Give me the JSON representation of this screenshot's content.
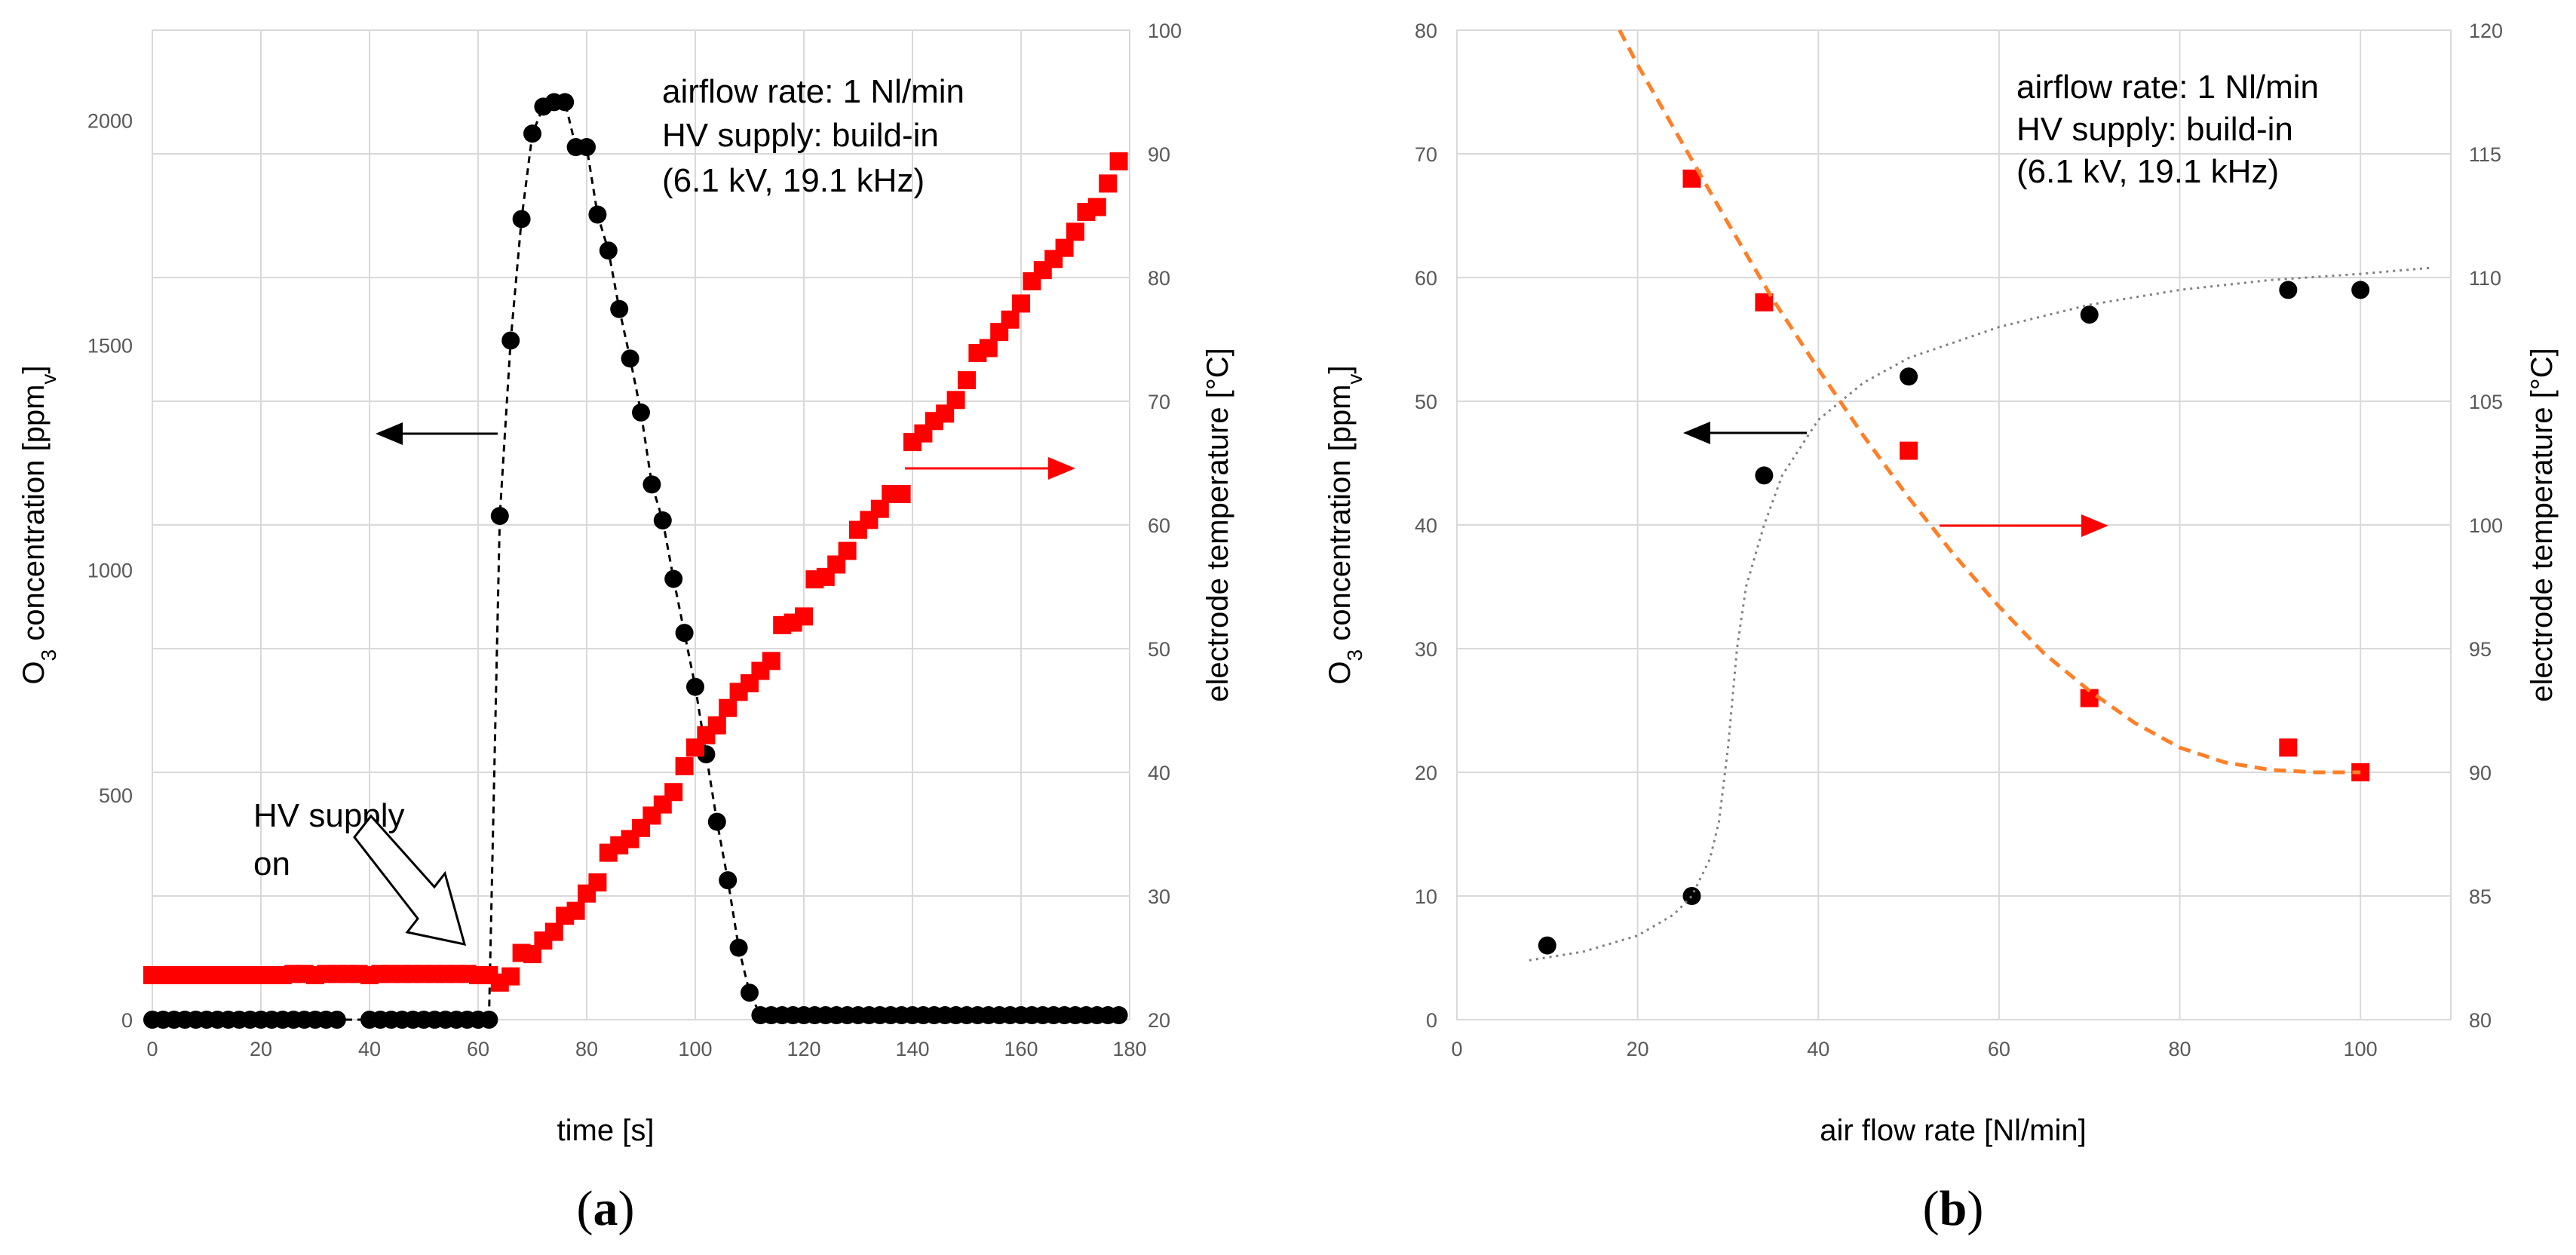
{
  "chart_data": [
    {
      "type": "scatter",
      "panel_label": "(a)",
      "xlabel": "time [s]",
      "ylabel_left": "O",
      "ylabel_left_sub": "3",
      "ylabel_left_rest": " concentration [ppm",
      "ylabel_left_sub2": "v",
      "ylabel_left_end": "]",
      "ylabel_right": "electrode temperature [°C]",
      "xlim": [
        0,
        180
      ],
      "ylim_left": [
        0,
        2200
      ],
      "ylim_right": [
        20,
        100
      ],
      "x_ticks": [
        "0",
        "20",
        "40",
        "60",
        "80",
        "100",
        "120",
        "140",
        "160",
        "180"
      ],
      "y_left_ticks": [
        "0",
        "500",
        "1000",
        "1500",
        "2000"
      ],
      "y_right_ticks": [
        "20",
        "30",
        "40",
        "50",
        "60",
        "70",
        "80",
        "90",
        "100"
      ],
      "annotation_lines": [
        "airflow rate: 1 Nl/min",
        "HV supply: build-in",
        "(6.1 kV, 19.1 kHz)"
      ],
      "hv_label_lines": [
        "HV supply",
        "on"
      ],
      "series": [
        {
          "name": "O3 concentration",
          "axis": "left",
          "color": "#000000",
          "marker": "circle",
          "line": "dashed",
          "x": [
            0,
            2,
            4,
            6,
            8,
            10,
            12,
            14,
            16,
            18,
            20,
            22,
            24,
            26,
            28,
            30,
            32,
            34,
            40,
            42,
            44,
            46,
            48,
            50,
            52,
            54,
            56,
            58,
            60,
            62,
            64,
            66,
            68,
            70,
            72,
            74,
            76,
            78,
            80,
            82,
            84,
            86,
            88,
            90,
            92,
            94,
            96,
            98,
            100,
            102,
            104,
            106,
            108,
            110,
            112,
            114,
            116,
            118,
            120,
            122,
            124,
            126,
            128,
            130,
            132,
            134,
            136,
            138,
            140,
            142,
            144,
            146,
            148,
            150,
            152,
            154,
            156,
            158,
            160,
            162,
            164,
            166,
            168,
            170,
            172,
            174,
            176,
            178
          ],
          "y": [
            0,
            0,
            0,
            0,
            0,
            0,
            0,
            0,
            0,
            0,
            0,
            0,
            0,
            0,
            0,
            0,
            0,
            0,
            0,
            0,
            0,
            0,
            0,
            0,
            0,
            0,
            0,
            0,
            0,
            0,
            1120,
            1510,
            1780,
            1970,
            2030,
            2040,
            2040,
            1940,
            1940,
            1790,
            1710,
            1580,
            1470,
            1350,
            1190,
            1110,
            980,
            860,
            740,
            590,
            440,
            310,
            160,
            60,
            10,
            10,
            10,
            10,
            10,
            10,
            10,
            10,
            10,
            10,
            10,
            10,
            10,
            10,
            10,
            10,
            10,
            10,
            10,
            10,
            10,
            10,
            10,
            10,
            10,
            10,
            10,
            10,
            10,
            10,
            10,
            10,
            10,
            10
          ]
        },
        {
          "name": "electrode temperature",
          "axis": "right",
          "color": "#ff0000",
          "marker": "square",
          "line": "none",
          "x": [
            0,
            2,
            4,
            6,
            8,
            10,
            12,
            14,
            16,
            18,
            20,
            22,
            24,
            26,
            28,
            30,
            32,
            34,
            36,
            38,
            40,
            42,
            44,
            46,
            48,
            50,
            52,
            54,
            56,
            58,
            60,
            62,
            64,
            66,
            68,
            70,
            72,
            74,
            76,
            78,
            80,
            82,
            84,
            86,
            88,
            90,
            92,
            94,
            96,
            98,
            100,
            102,
            104,
            106,
            108,
            110,
            112,
            114,
            116,
            118,
            120,
            122,
            124,
            126,
            128,
            130,
            132,
            134,
            136,
            138,
            140,
            142,
            144,
            146,
            148,
            150,
            152,
            154,
            156,
            158,
            160,
            162,
            164,
            166,
            168,
            170,
            172,
            174,
            176,
            178
          ],
          "y": [
            23.6,
            23.6,
            23.6,
            23.6,
            23.6,
            23.6,
            23.6,
            23.6,
            23.6,
            23.6,
            23.6,
            23.6,
            23.6,
            23.7,
            23.7,
            23.6,
            23.7,
            23.7,
            23.7,
            23.7,
            23.6,
            23.7,
            23.7,
            23.7,
            23.7,
            23.7,
            23.7,
            23.7,
            23.7,
            23.7,
            23.6,
            23.6,
            23.0,
            23.5,
            25.4,
            25.3,
            26.4,
            27.1,
            28.4,
            28.8,
            30.2,
            31.1,
            33.5,
            34.1,
            34.6,
            35.5,
            36.5,
            37.4,
            38.4,
            40.5,
            42.0,
            43.0,
            43.8,
            45.2,
            46.5,
            47.2,
            48.2,
            49.0,
            51.9,
            52.1,
            52.6,
            55.6,
            55.8,
            56.8,
            57.9,
            59.6,
            60.4,
            61.3,
            62.5,
            62.5,
            66.7,
            67.4,
            68.4,
            69.0,
            70.1,
            71.7,
            73.9,
            74.3,
            75.6,
            76.6,
            77.9,
            79.7,
            80.6,
            81.5,
            82.4,
            83.7,
            85.3,
            85.7,
            87.6,
            89.4
          ]
        }
      ]
    },
    {
      "type": "scatter",
      "panel_label": "(b)",
      "xlabel": "air flow rate [Nl/min]",
      "ylabel_left": "O",
      "ylabel_left_sub": "3",
      "ylabel_left_rest": " concentration [ppm",
      "ylabel_left_sub2": "v",
      "ylabel_left_end": "]",
      "ylabel_right": "electrode temperature [°C]",
      "xlim": [
        0,
        110
      ],
      "ylim_left": [
        0,
        80
      ],
      "ylim_right": [
        80,
        120
      ],
      "x_ticks": [
        "0",
        "20",
        "40",
        "60",
        "80",
        "100"
      ],
      "y_left_ticks": [
        "0",
        "10",
        "20",
        "30",
        "40",
        "50",
        "60",
        "70",
        "80"
      ],
      "y_right_ticks": [
        "80",
        "85",
        "90",
        "95",
        "100",
        "105",
        "110",
        "115",
        "120"
      ],
      "annotation_lines": [
        "airflow rate: 1 Nl/min",
        "HV supply: build-in",
        "(6.1 kV, 19.1 kHz)"
      ],
      "series": [
        {
          "name": "O3 concentration",
          "axis": "left",
          "color": "#000000",
          "marker": "circle",
          "x": [
            10,
            26,
            34,
            50,
            70,
            92,
            100
          ],
          "y": [
            6,
            10,
            44,
            52,
            57,
            59,
            59
          ]
        },
        {
          "name": "electrode temperature",
          "axis": "right",
          "color": "#ff0000",
          "marker": "square",
          "x": [
            26,
            34,
            50,
            70,
            92,
            100
          ],
          "y": [
            114,
            109,
            103,
            93,
            91,
            90
          ]
        },
        {
          "name": "O3 trend",
          "axis": "left",
          "color": "#808080",
          "style": "dotted",
          "x": [
            8,
            14,
            20,
            24,
            26,
            28,
            29,
            30,
            31,
            32,
            34,
            36,
            40,
            45,
            50,
            60,
            70,
            80,
            90,
            100,
            108
          ],
          "y": [
            4.8,
            5.5,
            6.8,
            8.5,
            10,
            13,
            16,
            22,
            30,
            35,
            40,
            44,
            48.5,
            51.5,
            53.5,
            56,
            57.8,
            59,
            59.8,
            60.3,
            60.8
          ]
        },
        {
          "name": "temperature trend",
          "axis": "right",
          "color": "#ff7f27",
          "style": "dashed",
          "x": [
            18,
            20,
            25,
            30,
            35,
            40,
            45,
            50,
            55,
            60,
            65,
            70,
            75,
            80,
            85,
            90,
            95,
            100
          ],
          "y": [
            120,
            118.6,
            115.4,
            112.2,
            109.1,
            106.3,
            103.6,
            101.1,
            98.8,
            96.7,
            94.8,
            93.3,
            92.0,
            91.0,
            90.4,
            90.1,
            90.0,
            90.0
          ]
        }
      ]
    }
  ]
}
